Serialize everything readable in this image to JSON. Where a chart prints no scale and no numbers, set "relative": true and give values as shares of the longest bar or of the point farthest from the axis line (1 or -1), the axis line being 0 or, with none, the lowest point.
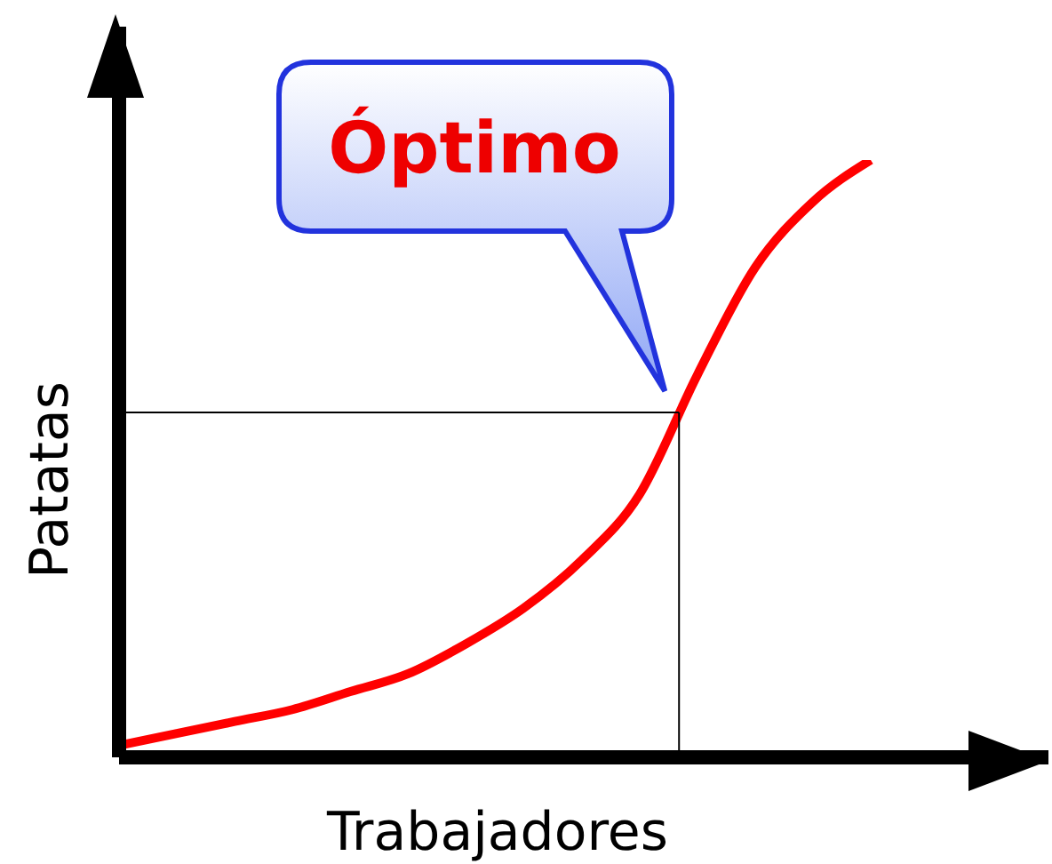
{
  "chart_data": {
    "type": "line",
    "relative": true,
    "xlabel": "Trabajadores",
    "ylabel": "Patatas",
    "categories": [
      null,
      null,
      null,
      null,
      null,
      null,
      null,
      null,
      null,
      null,
      null,
      null,
      null,
      null
    ],
    "series": [
      {
        "color": "#ff0000",
        "values": [
          0.02,
          0.04,
          0.06,
          0.08,
          0.11,
          0.14,
          0.19,
          0.25,
          0.33,
          0.44,
          0.64,
          0.82,
          0.93,
          1.0
        ]
      }
    ],
    "annotations": [
      "Óptimo"
    ],
    "ref_lines": [
      {
        "axis": "y",
        "value": 0.58,
        "color": "#000000"
      }
    ],
    "marker": "none",
    "grid": false,
    "legend": false
  }
}
